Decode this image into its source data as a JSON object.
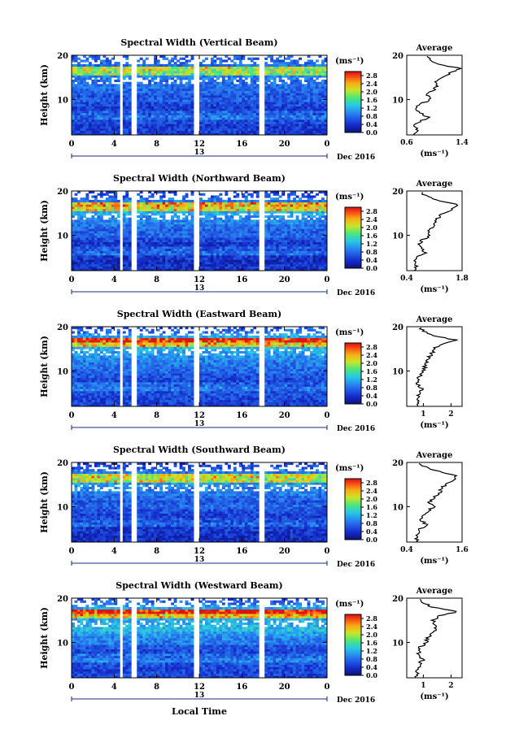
{
  "figure": {
    "xlabel": "Local Time",
    "date_label": "Dec 2016",
    "day_label": "13",
    "units_label": "(ms⁻¹)",
    "avg_title": "Average",
    "avg_xlabel": "(ms⁻¹)",
    "ylabel": "Height (km)"
  },
  "chart_data": [
    {
      "type": "heatmap",
      "title": "Spectral Width (Vertical Beam)",
      "ylabel": "Height (km)",
      "x_ticks": [
        "0",
        "4",
        "8",
        "12",
        "16",
        "20",
        "0"
      ],
      "y_ticks": [
        "10",
        "20"
      ],
      "colorbar": {
        "label": "(ms⁻¹)",
        "ticks": [
          "0.0",
          "0.4",
          "0.8",
          "1.2",
          "1.6",
          "2.0",
          "2.4",
          "2.8"
        ],
        "range": [
          0,
          3.0
        ]
      },
      "gaps_hours": [
        [
          4.4,
          4.9
        ],
        [
          5.7,
          6.1
        ],
        [
          11.6,
          12.1
        ],
        [
          17.6,
          18.0
        ]
      ],
      "average": {
        "xlim": [
          0.6,
          1.4
        ],
        "xticks": [
          "0.6",
          "1.4"
        ],
        "height": [
          2,
          3,
          4,
          5,
          6,
          7,
          8,
          9,
          10,
          11,
          12,
          13,
          14,
          15,
          16,
          17,
          18,
          19,
          20
        ],
        "value": [
          0.72,
          0.75,
          0.7,
          0.8,
          0.9,
          0.78,
          0.74,
          0.8,
          0.95,
          0.88,
          0.98,
          1.05,
          1.02,
          1.12,
          1.22,
          1.38,
          1.05,
          0.95,
          0.9
        ]
      }
    },
    {
      "type": "heatmap",
      "title": "Spectral Width (Northward Beam)",
      "ylabel": "Height (km)",
      "x_ticks": [
        "0",
        "4",
        "8",
        "12",
        "16",
        "20",
        "0"
      ],
      "y_ticks": [
        "10",
        "20"
      ],
      "colorbar": {
        "label": "(ms⁻¹)",
        "ticks": [
          "0.0",
          "0.4",
          "0.8",
          "1.2",
          "1.6",
          "2.0",
          "2.4",
          "2.8"
        ],
        "range": [
          0,
          3.0
        ]
      },
      "gaps_hours": [
        [
          4.4,
          4.9
        ],
        [
          5.7,
          6.1
        ],
        [
          11.6,
          12.1
        ],
        [
          17.6,
          18.0
        ]
      ],
      "average": {
        "xlim": [
          0.4,
          1.8
        ],
        "xticks": [
          "0.4",
          "1.8"
        ],
        "height": [
          2,
          3,
          4,
          5,
          6,
          7,
          8,
          9,
          10,
          11,
          12,
          13,
          14,
          15,
          16,
          17,
          18,
          19,
          20
        ],
        "value": [
          0.6,
          0.65,
          0.62,
          0.68,
          0.85,
          0.75,
          0.7,
          0.8,
          1.0,
          0.95,
          1.05,
          1.15,
          1.2,
          1.35,
          1.55,
          1.7,
          1.1,
          0.85,
          0.7
        ]
      }
    },
    {
      "type": "heatmap",
      "title": "Spectral Width (Eastward Beam)",
      "ylabel": "Height (km)",
      "x_ticks": [
        "0",
        "4",
        "8",
        "12",
        "16",
        "20",
        "0"
      ],
      "y_ticks": [
        "10",
        "20"
      ],
      "colorbar": {
        "label": "(ms⁻¹)",
        "ticks": [
          "0.0",
          "0.4",
          "0.8",
          "1.2",
          "1.6",
          "2.0",
          "2.4",
          "2.8"
        ],
        "range": [
          0,
          3.0
        ]
      },
      "gaps_hours": [
        [
          4.4,
          4.9
        ],
        [
          5.7,
          6.1
        ],
        [
          11.6,
          12.1
        ],
        [
          17.6,
          18.0
        ]
      ],
      "average": {
        "xlim": [
          0.4,
          2.4
        ],
        "xticks": [
          "1",
          "2"
        ],
        "height": [
          2,
          3,
          4,
          5,
          6,
          7,
          8,
          9,
          10,
          11,
          12,
          13,
          14,
          15,
          16,
          17,
          18,
          19,
          20
        ],
        "value": [
          0.75,
          0.78,
          0.8,
          0.85,
          0.95,
          0.82,
          0.8,
          0.88,
          1.0,
          1.05,
          1.1,
          1.2,
          1.3,
          1.4,
          1.6,
          2.2,
          1.3,
          1.0,
          0.85
        ]
      }
    },
    {
      "type": "heatmap",
      "title": "Spectral Width (Southward Beam)",
      "ylabel": "Height (km)",
      "x_ticks": [
        "0",
        "4",
        "8",
        "12",
        "16",
        "20",
        "0"
      ],
      "y_ticks": [
        "10",
        "20"
      ],
      "colorbar": {
        "label": "(ms⁻¹)",
        "ticks": [
          "0.0",
          "0.4",
          "0.8",
          "1.2",
          "1.6",
          "2.0",
          "2.4",
          "2.8"
        ],
        "range": [
          0,
          3.0
        ]
      },
      "gaps_hours": [
        [
          4.4,
          4.9
        ],
        [
          5.7,
          6.1
        ],
        [
          11.6,
          12.1
        ],
        [
          17.6,
          18.0
        ]
      ],
      "average": {
        "xlim": [
          0.4,
          1.6
        ],
        "xticks": [
          "0.4",
          "1.6"
        ],
        "height": [
          2,
          3,
          4,
          5,
          6,
          7,
          8,
          9,
          10,
          11,
          12,
          13,
          14,
          15,
          16,
          17,
          18,
          19,
          20
        ],
        "value": [
          0.6,
          0.62,
          0.65,
          0.7,
          0.82,
          0.72,
          0.75,
          0.85,
          0.98,
          0.9,
          1.0,
          1.1,
          1.15,
          1.25,
          1.4,
          1.45,
          1.1,
          0.8,
          0.65
        ]
      }
    },
    {
      "type": "heatmap",
      "title": "Spectral Width (Westward Beam)",
      "ylabel": "Height (km)",
      "x_ticks": [
        "0",
        "4",
        "8",
        "12",
        "16",
        "20",
        "0"
      ],
      "y_ticks": [
        "10",
        "20"
      ],
      "colorbar": {
        "label": "(ms⁻¹)",
        "ticks": [
          "0.0",
          "0.4",
          "0.8",
          "1.2",
          "1.6",
          "2.0",
          "2.4",
          "2.8"
        ],
        "range": [
          0,
          3.0
        ]
      },
      "gaps_hours": [
        [
          4.4,
          4.9
        ],
        [
          5.7,
          6.1
        ],
        [
          11.6,
          12.1
        ],
        [
          17.6,
          18.0
        ]
      ],
      "average": {
        "xlim": [
          0.4,
          2.4
        ],
        "xticks": [
          "1",
          "2"
        ],
        "height": [
          2,
          3,
          4,
          5,
          6,
          7,
          8,
          9,
          10,
          11,
          12,
          13,
          14,
          15,
          16,
          17,
          18,
          19,
          20
        ],
        "value": [
          0.75,
          0.8,
          0.78,
          0.85,
          0.98,
          0.85,
          0.82,
          0.9,
          1.1,
          1.15,
          1.3,
          1.45,
          1.4,
          1.35,
          1.6,
          2.25,
          1.3,
          1.0,
          0.85
        ]
      }
    }
  ]
}
